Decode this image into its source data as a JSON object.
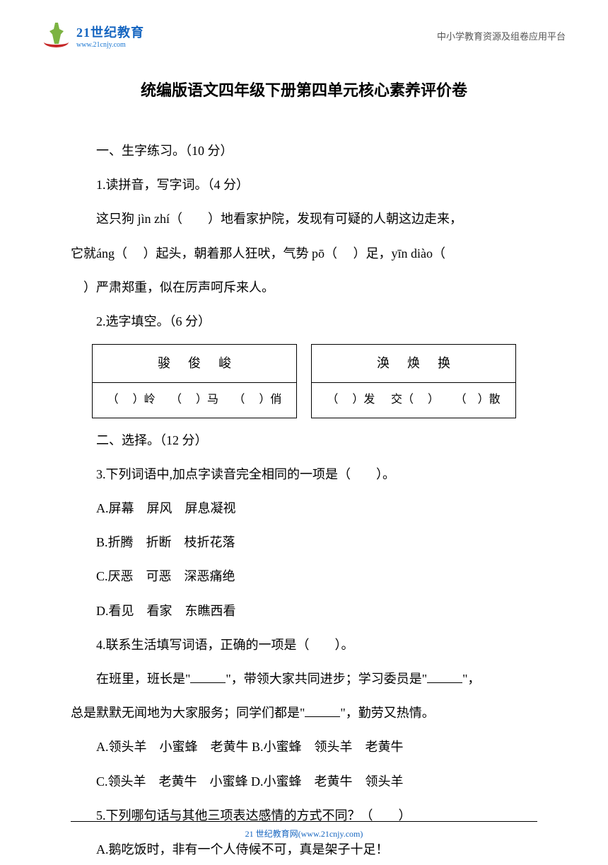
{
  "header": {
    "logo_main": "21世纪教育",
    "logo_url": "www.21cnjy.com",
    "right_text": "中小学教育资源及组卷应用平台"
  },
  "title": "统编版语文四年级下册第四单元核心素养评价卷",
  "section1": {
    "heading": "一、生字练习。（10 分）",
    "q1": {
      "prompt": "1.读拼音，写字词。（4 分）",
      "text_1": "这只狗 jìn zhí（　　）地看家护院，发现有可疑的人朝这边走来，",
      "text_2": "它就áng（　 ）起头，朝着那人狂吠，气势 pō（　 ）足，yīn diào（",
      "text_3": "　）严肃郑重，似在厉声呵斥来人。"
    },
    "q2": {
      "prompt": "2.选字填空。（6 分）",
      "box1_header": "骏俊峻",
      "box1_items": [
        "（　 ）岭",
        "（　 ）马",
        "（　 ）俏"
      ],
      "box2_header": "涣焕换",
      "box2_items": [
        "（　 ）发",
        "交（　 ）",
        "（　）散"
      ]
    }
  },
  "section2": {
    "heading": "二、选择。（12 分）",
    "q3": {
      "prompt": "3.下列词语中,加点字读音完全相同的一项是（　　）。",
      "options": [
        "A.屏幕　屏风　屏息凝视",
        "B.折腾　折断　枝折花落",
        "C.厌恶　可恶　深恶痛绝",
        "D.看见　看家　东瞧西看"
      ]
    },
    "q4": {
      "prompt": "4.联系生活填写词语，正确的一项是（　　）。",
      "text_1": "在班里，班长是\"",
      "text_2": "\"，带领大家共同进步；学习委员是\"",
      "text_3": "\"，",
      "text_4": "总是默默无闻地为大家服务；同学们都是\"",
      "text_5": "\"，勤劳又热情。",
      "options_row1": " A.领头羊　小蜜蜂　老黄牛 B.小蜜蜂　领头羊　老黄牛",
      "options_row2": " C.领头羊　老黄牛　小蜜蜂 D.小蜜蜂　老黄牛　领头羊"
    },
    "q5": {
      "prompt": "5.下列哪句话与其他三项表达感情的方式不同？（　　）",
      "options": [
        "A.鹅吃饭时，非有一个人侍候不可，真是架子十足！"
      ]
    }
  },
  "footer": "21 世纪教育网(www.21cnjy.com)"
}
